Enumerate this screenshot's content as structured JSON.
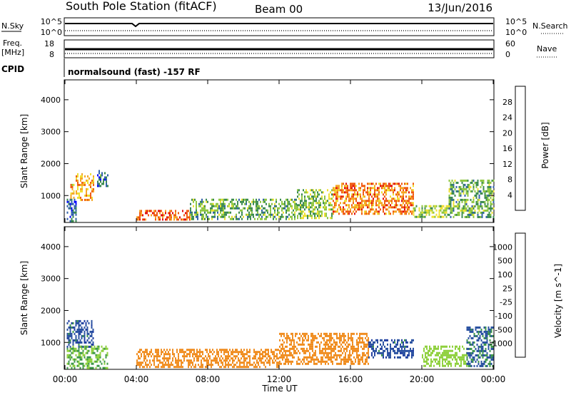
{
  "header": {
    "station": "South Pole Station (fitACF)",
    "beam": "Beam 00",
    "date": "13/Jun/2016"
  },
  "status": {
    "nsky_label": "N.Sky",
    "nsky_top": "10^5",
    "nsky_bottom": "10^0",
    "nsearch_label": "N.Search",
    "nsearch_top": "10^5",
    "nsearch_bottom": "10^0",
    "freq_label": "Freq.",
    "freq_unit": "[MHz]",
    "freq_top": "18",
    "freq_bottom": "8",
    "nave_label": "Nave",
    "nave_top": "60",
    "nave_bottom": "0",
    "cpid_label": "CPID",
    "cpid_text": "normalsound (fast) -157 RF"
  },
  "colors": {
    "power_scale": [
      "#0000ff",
      "#2f5faa",
      "#3a8a4e",
      "#8ec63f",
      "#f0e030",
      "#f5a623",
      "#f05a10",
      "#e01010"
    ],
    "velocity_scale": [
      "#e81010",
      "#f06010",
      "#f08c1e",
      "#f5c030",
      "#c8c8c8",
      "#8ed03c",
      "#3c9648",
      "#2850a0",
      "#1e3ca0"
    ]
  },
  "chart_data": [
    {
      "type": "heatmap",
      "title": "",
      "xlabel": "",
      "ylabel": "Slant Range [km]",
      "x_ticks": [
        "00:00",
        "04:00",
        "08:00",
        "12:00",
        "16:00",
        "20:00",
        "00:00"
      ],
      "x_range_hours": [
        0,
        24
      ],
      "ylim": [
        180,
        4600
      ],
      "y_ticks": [
        1000,
        2000,
        3000,
        4000
      ],
      "colorbar": {
        "label": "Power [dB]",
        "ticks": [
          4,
          8,
          12,
          16,
          20,
          24,
          28
        ],
        "range": [
          0,
          32
        ]
      },
      "echo_regions": [
        {
          "t0": 0.1,
          "t1": 0.6,
          "r0": 200,
          "r1": 900,
          "value": 6
        },
        {
          "t0": 0.3,
          "t1": 0.5,
          "r0": 900,
          "r1": 1500,
          "value": 20
        },
        {
          "t0": 0.6,
          "t1": 1.6,
          "r0": 850,
          "r1": 1700,
          "value": 22
        },
        {
          "t0": 1.8,
          "t1": 2.4,
          "r0": 1300,
          "r1": 1800,
          "value": 8
        },
        {
          "t0": 4.0,
          "t1": 7.0,
          "r0": 250,
          "r1": 550,
          "value": 26
        },
        {
          "t0": 7.0,
          "t1": 13.0,
          "r0": 250,
          "r1": 900,
          "value": 12
        },
        {
          "t0": 13.0,
          "t1": 15.0,
          "r0": 300,
          "r1": 1200,
          "value": 14
        },
        {
          "t0": 15.0,
          "t1": 19.5,
          "r0": 400,
          "r1": 1400,
          "value": 24
        },
        {
          "t0": 19.5,
          "t1": 21.5,
          "r0": 300,
          "r1": 700,
          "value": 14
        },
        {
          "t0": 21.5,
          "t1": 24.0,
          "r0": 300,
          "r1": 1500,
          "value": 12
        }
      ]
    },
    {
      "type": "heatmap",
      "title": "",
      "xlabel": "Time UT",
      "ylabel": "Slant Range [km]",
      "x_ticks": [
        "00:00",
        "04:00",
        "08:00",
        "12:00",
        "16:00",
        "20:00",
        "00:00"
      ],
      "x_range_hours": [
        0,
        24
      ],
      "ylim": [
        180,
        4600
      ],
      "y_ticks": [
        1000,
        2000,
        3000,
        4000
      ],
      "colorbar": {
        "label": "Velocity [m s^-1]",
        "ticks": [
          -1000,
          -500,
          -100,
          -25,
          25,
          100,
          500,
          1000
        ]
      },
      "echo_regions": [
        {
          "t0": 0.1,
          "t1": 1.6,
          "r0": 850,
          "r1": 1700,
          "value": 800
        },
        {
          "t0": 0.1,
          "t1": 2.4,
          "r0": 200,
          "r1": 900,
          "value": 100
        },
        {
          "t0": 4.0,
          "t1": 12.0,
          "r0": 250,
          "r1": 800,
          "value": -200
        },
        {
          "t0": 12.0,
          "t1": 17.0,
          "r0": 300,
          "r1": 1300,
          "value": -300
        },
        {
          "t0": 17.0,
          "t1": 19.5,
          "r0": 500,
          "r1": 1100,
          "value": 800
        },
        {
          "t0": 20.0,
          "t1": 22.5,
          "r0": 250,
          "r1": 900,
          "value": 60
        },
        {
          "t0": 22.5,
          "t1": 24.0,
          "r0": 250,
          "r1": 1500,
          "value": 600
        }
      ]
    }
  ]
}
